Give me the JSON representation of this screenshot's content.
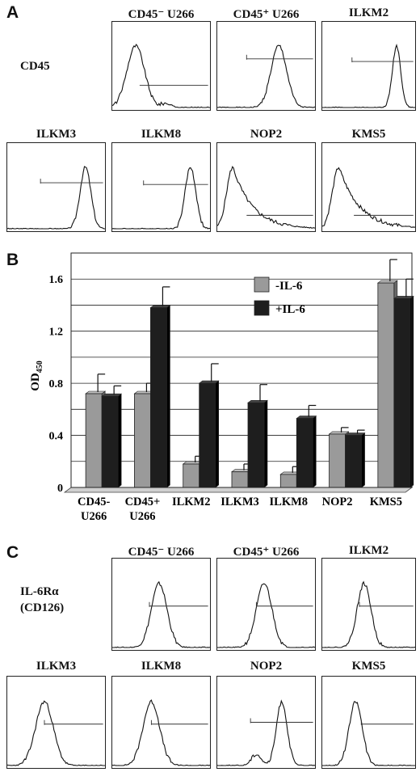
{
  "panel_a": {
    "letter": "A",
    "row_label": "CD45",
    "histograms": [
      {
        "title": "CD45⁻ U266"
      },
      {
        "title": "CD45⁺ U266"
      },
      {
        "title": "ILKM2"
      },
      {
        "title": "ILKM3"
      },
      {
        "title": "ILKM8"
      },
      {
        "title": "NOP2"
      },
      {
        "title": "KMS5"
      }
    ]
  },
  "panel_c": {
    "letter": "C",
    "row_label_1": "IL-6Rα",
    "row_label_2": "(CD126)",
    "histograms": [
      {
        "title": "CD45⁻ U266"
      },
      {
        "title": "CD45⁺ U266"
      },
      {
        "title": "ILKM2"
      },
      {
        "title": "ILKM3"
      },
      {
        "title": "ILKM8"
      },
      {
        "title": "NOP2"
      },
      {
        "title": "KMS5"
      }
    ]
  },
  "chart_data": {
    "letter": "B",
    "type": "bar",
    "ylabel": "OD",
    "ylabel_sub": "450",
    "categories": [
      [
        "CD45-",
        "U266"
      ],
      [
        "CD45+",
        "U266"
      ],
      [
        "ILKM2"
      ],
      [
        "ILKM3"
      ],
      [
        "ILKM8"
      ],
      [
        "NOP2"
      ],
      [
        "KMS5"
      ]
    ],
    "series": [
      {
        "name": "-IL-6",
        "values": [
          0.72,
          0.72,
          0.18,
          0.12,
          0.1,
          0.41,
          1.57
        ],
        "errors": [
          0.15,
          0.08,
          0.06,
          0.06,
          0.06,
          0.05,
          0.18
        ],
        "color": "#9a9a9a"
      },
      {
        "name": "+IL-6",
        "values": [
          0.7,
          1.38,
          0.8,
          0.65,
          0.53,
          0.4,
          1.45
        ],
        "errors": [
          0.08,
          0.16,
          0.15,
          0.14,
          0.1,
          0.04,
          0.15
        ],
        "color": "#1e1e1e"
      }
    ],
    "yticks": [
      "0",
      "0.4",
      "0.8",
      "1.2",
      "1.6"
    ],
    "ylim": [
      0,
      1.8
    ],
    "grid": true,
    "legend_position": "top-right"
  }
}
